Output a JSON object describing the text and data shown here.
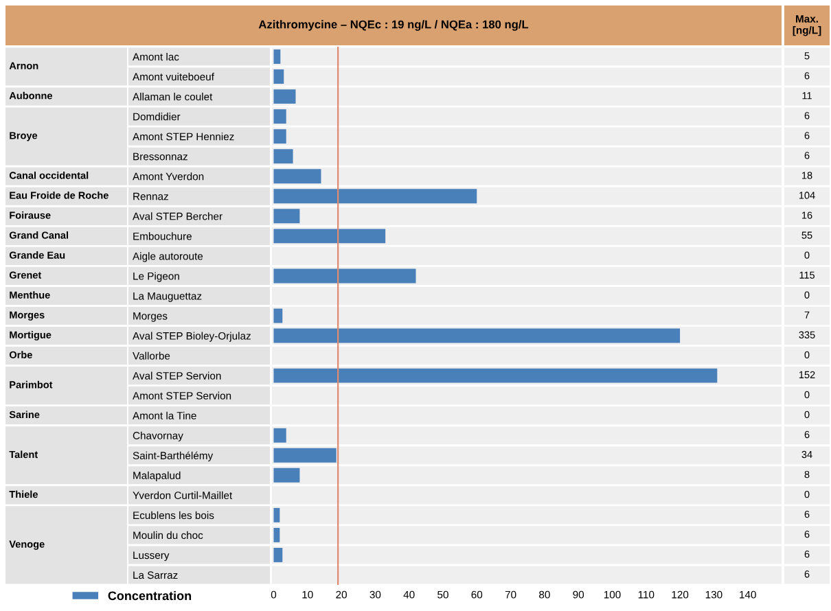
{
  "chart_data": [
    {
      "type": "other",
      "categories": [
        "Arnon",
        null,
        "Aubonne",
        "Broye",
        null,
        null,
        "Canal occidental",
        "Eau Froide de Roche",
        "Foirause",
        "Grand Canal",
        "Grande Eau",
        "Grenet",
        "Menthue",
        "Morges",
        "Mortigue",
        "Orbe",
        "Parimbot",
        null,
        "Sarine",
        "Talent",
        null,
        null,
        "Thiele",
        "Venoge",
        null,
        null,
        null
      ]
    },
    {
      "type": "bar",
      "orientation": "horizontal",
      "title": "Azithromycine – NQEc : 19 ng/L / NQEa : 180 ng/L",
      "categories": [
        "Amont lac",
        "Amont vuiteboeuf",
        "Allaman le coulet",
        "Domdidier",
        "Amont STEP Henniez",
        "Bressonnaz",
        "Amont Yverdon",
        "Rennaz",
        "Aval STEP Bercher",
        "Embouchure",
        "Aigle autoroute",
        "Le Pigeon",
        "La Mauguettaz",
        "Morges",
        "Aval STEP Bioley-Orjulaz",
        "Vallorbe",
        "Aval STEP Servion",
        "Amont STEP Servion",
        "Amont la Tine",
        "Chavornay",
        "Saint-Barthélémy",
        "Malapalud",
        "Yverdon Curtil-Maillet",
        "Ecublens les bois",
        "Moulin du choc",
        "Lussery",
        "La Sarraz"
      ],
      "series": [
        {
          "name": "Concentration",
          "color": "#4a80b9",
          "values": [
            2,
            3,
            6.5,
            3.7,
            3.7,
            5.7,
            14,
            60,
            7.7,
            33,
            0,
            42,
            0,
            2.6,
            120,
            0,
            131,
            0,
            0,
            3.7,
            18.5,
            7.7,
            0,
            1.8,
            1.8,
            2.6,
            0
          ]
        }
      ],
      "xlim": [
        -0.5,
        150
      ],
      "xticks": [
        0,
        10,
        20,
        30,
        40,
        50,
        60,
        70,
        80,
        90,
        100,
        110,
        120,
        130,
        140
      ],
      "ref_lines": [
        {
          "axis": "x",
          "value": 19,
          "color": "#e08a70"
        }
      ],
      "grid": false,
      "legend": "bottom left"
    },
    {
      "type": "other",
      "title": "Max.\n[ng/L]",
      "annotations": [
        "5",
        "6",
        "11",
        "6",
        "6",
        "6",
        "18",
        "104",
        "16",
        "55",
        "0",
        "115",
        "0",
        "7",
        "335",
        "0",
        "152",
        "0",
        "0",
        "6",
        "34",
        "8",
        "0",
        "6",
        "6",
        "6",
        "6"
      ]
    }
  ]
}
